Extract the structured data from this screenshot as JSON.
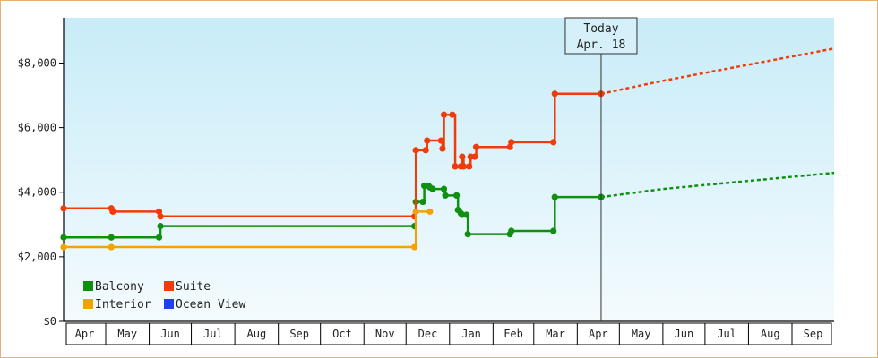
{
  "chart_data": {
    "type": "line",
    "style": "step",
    "x_axis": {
      "type": "month",
      "start": "2023-04-01",
      "end": "2024-10-01",
      "tick_labels": [
        "Apr",
        "May",
        "Jun",
        "Jul",
        "Aug",
        "Sep",
        "Oct",
        "Nov",
        "Dec",
        "Jan",
        "Feb",
        "Mar",
        "Apr",
        "May",
        "Jun",
        "Jul",
        "Aug",
        "Sep"
      ]
    },
    "y_axis": {
      "range": [
        0,
        9400
      ],
      "ticks": [
        0,
        2000,
        4000,
        6000,
        8000
      ],
      "tick_labels": [
        "$0",
        "$2,000",
        "$4,000",
        "$6,000",
        "$8,000"
      ]
    },
    "today": {
      "date": "2024-04-18",
      "label_line1": "Today",
      "label_line2": "Apr. 18"
    },
    "legend": {
      "placement": "bottom-left",
      "items": [
        {
          "name": "Balcony",
          "color": "#109010"
        },
        {
          "name": "Suite",
          "color": "#f03c0a"
        },
        {
          "name": "Interior",
          "color": "#f5a200"
        },
        {
          "name": "Ocean View",
          "color": "#1e40f0"
        }
      ]
    },
    "series": [
      {
        "name": "Balcony",
        "color": "#109010",
        "points": [
          [
            "2023-04-01",
            2600
          ],
          [
            "2023-05-05",
            2600
          ],
          [
            "2023-06-08",
            2600
          ],
          [
            "2023-06-09",
            2950
          ],
          [
            "2023-12-07",
            2950
          ],
          [
            "2023-12-08",
            3700
          ],
          [
            "2023-12-13",
            3700
          ],
          [
            "2023-12-14",
            4200
          ],
          [
            "2023-12-17",
            4200
          ],
          [
            "2023-12-18",
            4150
          ],
          [
            "2023-12-20",
            4100
          ],
          [
            "2023-12-28",
            4100
          ],
          [
            "2023-12-29",
            3900
          ],
          [
            "2024-01-06",
            3900
          ],
          [
            "2024-01-07",
            3450
          ],
          [
            "2024-01-09",
            3350
          ],
          [
            "2024-01-10",
            3300
          ],
          [
            "2024-01-13",
            3300
          ],
          [
            "2024-01-14",
            2700
          ],
          [
            "2024-02-13",
            2700
          ],
          [
            "2024-02-14",
            2800
          ],
          [
            "2024-03-15",
            2800
          ],
          [
            "2024-03-16",
            3850
          ],
          [
            "2024-04-18",
            3850
          ]
        ]
      },
      {
        "name": "Suite",
        "color": "#f03c0a",
        "points": [
          [
            "2023-04-01",
            3500
          ],
          [
            "2023-05-05",
            3500
          ],
          [
            "2023-05-06",
            3400
          ],
          [
            "2023-06-08",
            3400
          ],
          [
            "2023-06-09",
            3250
          ],
          [
            "2023-12-07",
            3250
          ],
          [
            "2023-12-08",
            5300
          ],
          [
            "2023-12-15",
            5300
          ],
          [
            "2023-12-16",
            5600
          ],
          [
            "2023-12-26",
            5600
          ],
          [
            "2023-12-27",
            5350
          ],
          [
            "2023-12-28",
            6400
          ],
          [
            "2024-01-03",
            6400
          ],
          [
            "2024-01-05",
            4800
          ],
          [
            "2024-01-09",
            4800
          ],
          [
            "2024-01-10",
            5100
          ],
          [
            "2024-01-11",
            4800
          ],
          [
            "2024-01-15",
            4800
          ],
          [
            "2024-01-16",
            5100
          ],
          [
            "2024-01-19",
            5100
          ],
          [
            "2024-01-20",
            5400
          ],
          [
            "2024-02-13",
            5400
          ],
          [
            "2024-02-14",
            5550
          ],
          [
            "2024-03-15",
            5550
          ],
          [
            "2024-03-16",
            7050
          ],
          [
            "2024-04-18",
            7050
          ]
        ]
      },
      {
        "name": "Interior",
        "color": "#f5a200",
        "points": [
          [
            "2023-04-01",
            2300
          ],
          [
            "2023-05-05",
            2300
          ],
          [
            "2023-12-07",
            2300
          ],
          [
            "2023-12-08",
            3400
          ],
          [
            "2023-12-18",
            3400
          ]
        ]
      },
      {
        "name": "Ocean View",
        "color": "#1e40f0",
        "points": []
      }
    ],
    "projections": [
      {
        "name": "Suite",
        "color": "#f03c0a",
        "points": [
          [
            "2024-04-18",
            7050
          ],
          [
            "2024-06-01",
            7450
          ],
          [
            "2024-08-01",
            7950
          ],
          [
            "2024-10-01",
            8450
          ]
        ]
      },
      {
        "name": "Balcony",
        "color": "#109010",
        "points": [
          [
            "2024-04-18",
            3850
          ],
          [
            "2024-06-01",
            4100
          ],
          [
            "2024-08-01",
            4350
          ],
          [
            "2024-10-01",
            4600
          ]
        ]
      }
    ]
  }
}
